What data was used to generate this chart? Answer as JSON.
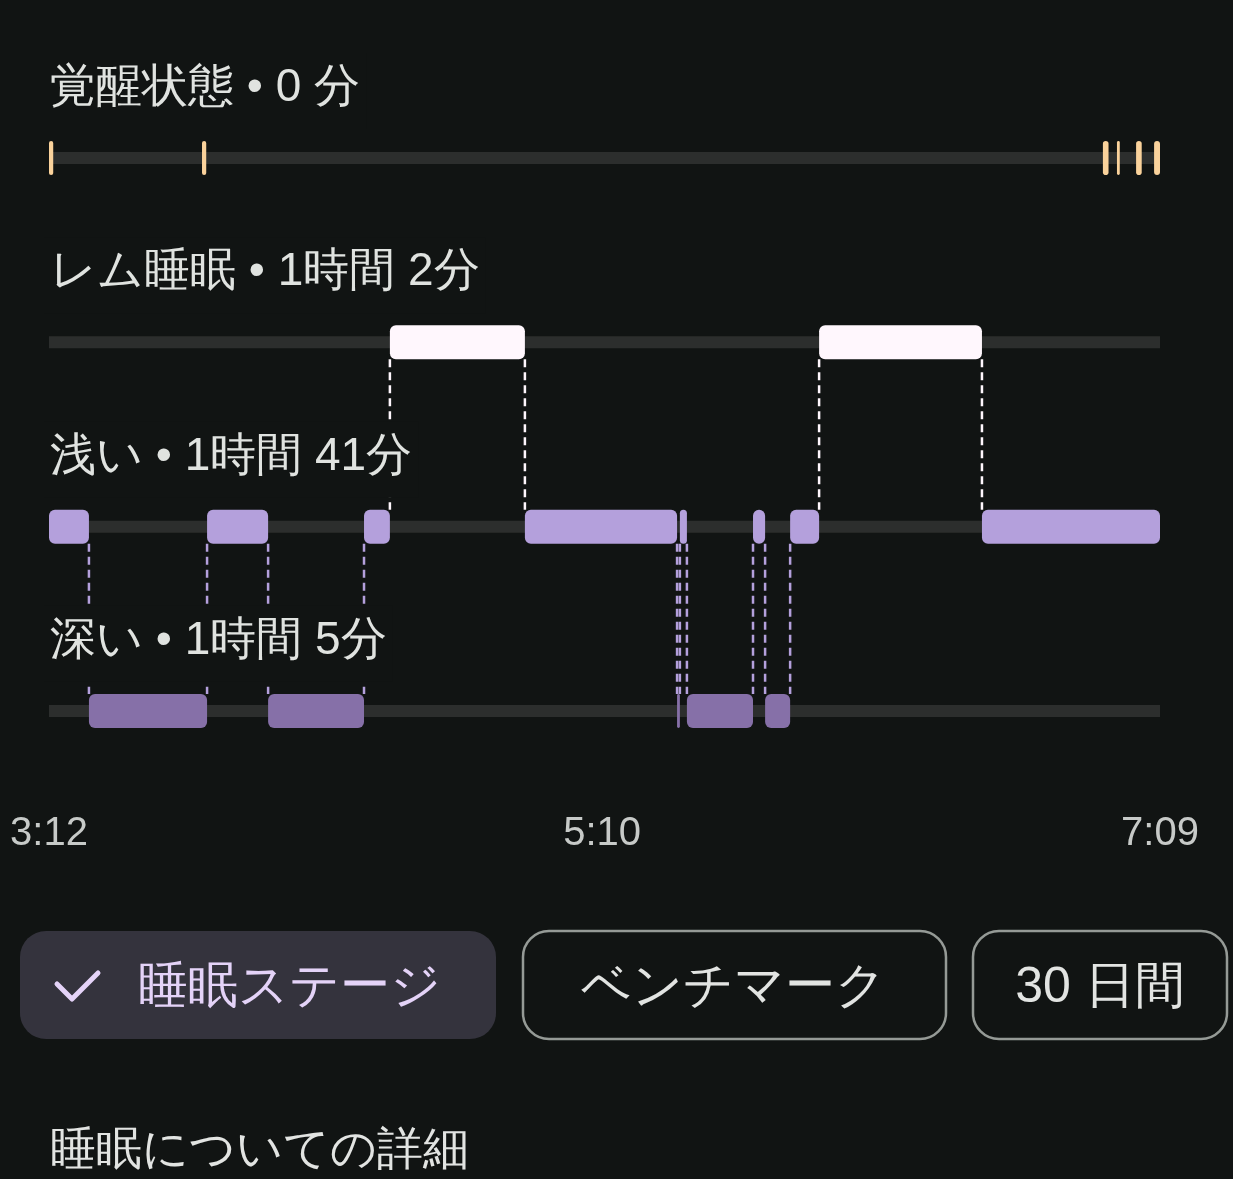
{
  "chart_data": {
    "type": "bar",
    "orientation": "horizontal",
    "categories": [
      "覚醒状態 • 0 分",
      "レム睡眠 • 1時間 2分",
      "浅い • 1時間 41分",
      "深い • 1時間 5分"
    ],
    "xlim": [
      3.2,
      7.15
    ],
    "xticks": [
      {
        "value": 3.2,
        "label": "3:12"
      },
      {
        "value": 5.1667,
        "label": "5:10"
      },
      {
        "value": 7.15,
        "label": "7:09"
      }
    ],
    "grid": "y",
    "series": [
      {
        "base": [
          3.2,
          4.412,
          3.2,
          3.342
        ],
        "values": [
          0.015,
          0.48,
          0.142,
          0.42
        ],
        "colors": [
          "#fad29b",
          "#fff7fd",
          "#b4a0dc",
          "#8670a8"
        ]
      },
      {
        "base": [
          3.744,
          5.938,
          3.762,
          3.979
        ],
        "values": [
          0.015,
          0.579,
          0.217,
          0.341
        ],
        "colors": [
          "#fad29b",
          "#fff7fd",
          "#b4a0dc",
          "#8670a8"
        ]
      },
      {
        "base": [
          6.947,
          null,
          4.32,
          5.433
        ],
        "values": [
          0.02,
          null,
          0.092,
          0.01
        ],
        "colors": [
          "#fad29b",
          null,
          "#b4a0dc",
          "#8670a8"
        ]
      },
      {
        "base": [
          6.997,
          null,
          4.892,
          5.468
        ],
        "values": [
          0.01,
          null,
          0.541,
          0.235
        ],
        "colors": [
          "#fad29b",
          null,
          "#b4a0dc",
          "#8670a8"
        ]
      },
      {
        "base": [
          7.065,
          null,
          5.443,
          5.746
        ],
        "values": [
          0.02,
          null,
          0.025,
          0.089
        ],
        "colors": [
          "#fad29b",
          null,
          "#b4a0dc",
          "#8670a8"
        ]
      },
      {
        "base": [
          7.129,
          null,
          5.703,
          null
        ],
        "values": [
          0.021,
          null,
          0.043,
          null
        ],
        "colors": [
          "#fad29b",
          null,
          "#b4a0dc",
          null
        ]
      },
      {
        "base": [
          null,
          null,
          5.835,
          null
        ],
        "values": [
          null,
          null,
          0.103,
          null
        ],
        "colors": [
          null,
          null,
          "#b4a0dc",
          null
        ]
      },
      {
        "base": [
          null,
          null,
          6.517,
          null
        ],
        "values": [
          null,
          null,
          0.633,
          null
        ],
        "colors": [
          null,
          null,
          "#b4a0dc",
          null
        ]
      }
    ],
    "annotations": [
      "睡眠ステージ",
      "ベンチマーク",
      "30 日間",
      "睡眠についての詳細"
    ]
  }
}
